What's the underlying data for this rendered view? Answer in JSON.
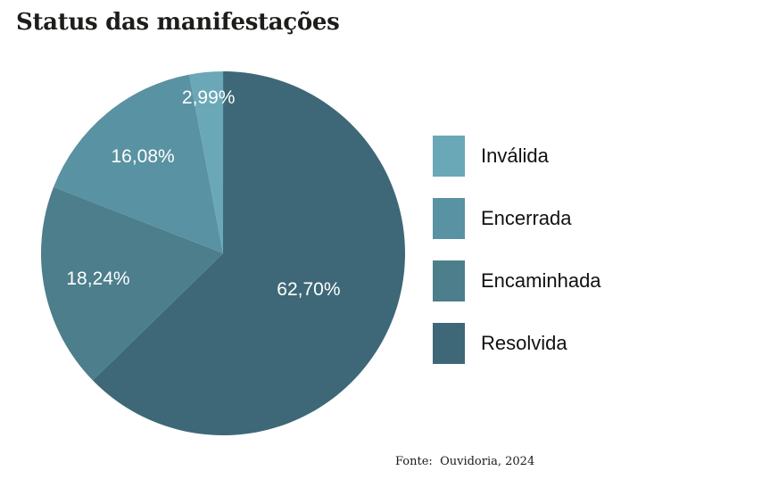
{
  "chart_data": {
    "type": "pie",
    "title": "Status das manifestações",
    "source": "Fonte:  Ouvidoria, 2024",
    "unit": "%",
    "slices": [
      {
        "label": "Resolvida",
        "value": 62.7,
        "display": "62,70%",
        "color": "#3e6877"
      },
      {
        "label": "Encaminhada",
        "value": 18.24,
        "display": "18,24%",
        "color": "#4d7e8c"
      },
      {
        "label": "Encerrada",
        "value": 16.08,
        "display": "16,08%",
        "color": "#5992a2"
      },
      {
        "label": "Inválida",
        "value": 2.99,
        "display": "2,99%",
        "color": "#6aa8b7"
      }
    ],
    "legend": [
      {
        "label": "Inválida",
        "color": "#6aa8b7"
      },
      {
        "label": "Encerrada",
        "color": "#5992a2"
      },
      {
        "label": "Encaminhada",
        "color": "#4d7e8c"
      },
      {
        "label": "Resolvida",
        "color": "#3e6877"
      }
    ],
    "layout": {
      "start_angle_deg": 0,
      "direction": "clockwise",
      "label_color": "#ffffff",
      "label_radius_fraction": [
        0.51,
        0.7,
        0.69,
        0.86
      ],
      "legend_position": "right",
      "grid": false
    }
  }
}
